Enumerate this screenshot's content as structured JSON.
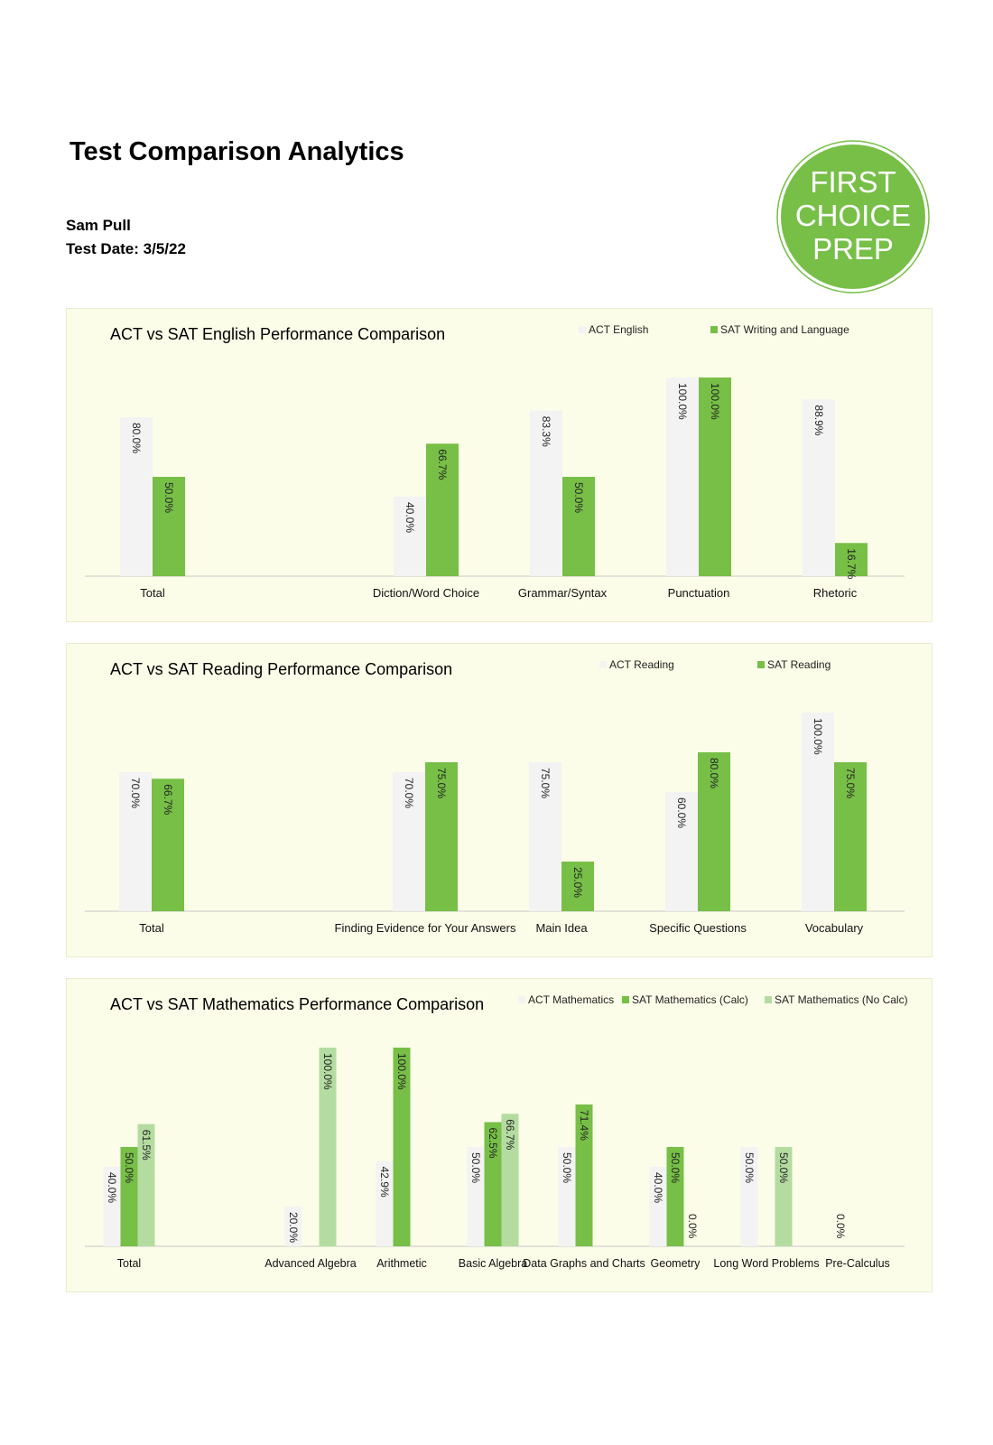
{
  "header": {
    "title": "Test Comparison Analytics",
    "student_name": "Sam Pull",
    "test_date": "Test Date: 3/5/22",
    "logo_lines": [
      "FIRST",
      "CHOICE",
      "PREP"
    ]
  },
  "colors": {
    "act": "#f3f3f3",
    "sat": "#77bf47",
    "sat_nocalc": "#b4dca0",
    "panel_bg": "#fbfde8",
    "logo": "#77bf47"
  },
  "chart_data": [
    {
      "type": "bar",
      "title": "ACT vs SAT English Performance Comparison",
      "categories": [
        "Total",
        "",
        "Diction/Word Choice",
        "Grammar/Syntax",
        "Punctuation",
        "Rhetoric"
      ],
      "series": [
        {
          "name": "ACT English",
          "values": [
            80.0,
            null,
            40.0,
            83.3,
            100.0,
            88.9
          ],
          "labels": [
            "80.0%",
            "",
            "40.0%",
            "83.3%",
            "100.0%",
            "88.9%"
          ]
        },
        {
          "name": "SAT Writing and Language",
          "values": [
            50.0,
            null,
            66.7,
            50.0,
            100.0,
            16.7
          ],
          "labels": [
            "50.0%",
            "",
            "66.7%",
            "50.0%",
            "100.0%",
            "16.7%"
          ]
        }
      ],
      "ylim": [
        0,
        100
      ],
      "legend": "top-right",
      "grid": false
    },
    {
      "type": "bar",
      "title": "ACT vs SAT Reading Performance Comparison",
      "categories": [
        "Total",
        "",
        "Finding Evidence for Your Answers",
        "Main Idea",
        "Specific Questions",
        "Vocabulary"
      ],
      "series": [
        {
          "name": "ACT Reading",
          "values": [
            70.0,
            null,
            70.0,
            75.0,
            60.0,
            100.0
          ],
          "labels": [
            "70.0%",
            "",
            "70.0%",
            "75.0%",
            "60.0%",
            "100.0%"
          ]
        },
        {
          "name": "SAT Reading",
          "values": [
            66.7,
            null,
            75.0,
            25.0,
            80.0,
            75.0
          ],
          "labels": [
            "66.7%",
            "",
            "75.0%",
            "25.0%",
            "80.0%",
            "75.0%"
          ]
        }
      ],
      "ylim": [
        0,
        100
      ],
      "legend": "top-right",
      "grid": false
    },
    {
      "type": "bar",
      "title": "ACT vs SAT Mathematics Performance Comparison",
      "categories": [
        "Total",
        "",
        "Advanced Algebra",
        "Arithmetic",
        "Basic Algebra",
        "Data Graphs and Charts",
        "Geometry",
        "Long Word Problems",
        "Pre-Calculus"
      ],
      "series": [
        {
          "name": "ACT Mathematics",
          "values": [
            40.0,
            null,
            20.0,
            42.9,
            50.0,
            50.0,
            40.0,
            50.0,
            0.0
          ],
          "labels": [
            "40.0%",
            "",
            "20.0%",
            "42.9%",
            "50.0%",
            "50.0%",
            "40.0%",
            "50.0%",
            "0.0%"
          ]
        },
        {
          "name": "SAT Mathematics (Calc)",
          "values": [
            50.0,
            null,
            null,
            100.0,
            62.5,
            71.4,
            50.0,
            null,
            null
          ],
          "labels": [
            "50.0%",
            "",
            "",
            "100.0%",
            "62.5%",
            "71.4%",
            "50.0%",
            "",
            ""
          ]
        },
        {
          "name": "SAT Mathematics (No Calc)",
          "values": [
            61.5,
            null,
            100.0,
            null,
            66.7,
            null,
            0.0,
            50.0,
            null
          ],
          "labels": [
            "61.5%",
            "",
            "100.0%",
            "",
            "66.7%",
            "",
            "0.0%",
            "50.0%",
            ""
          ]
        }
      ],
      "zero_label": "0.0%",
      "ylim": [
        0,
        100
      ],
      "legend": "top-right",
      "grid": false
    }
  ]
}
